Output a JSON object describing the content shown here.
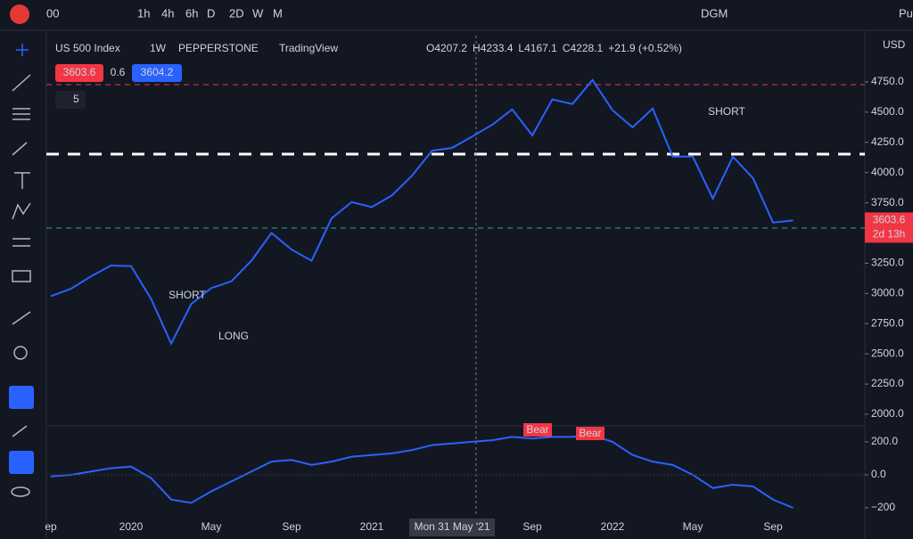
{
  "toolbar": {
    "items": [
      "00",
      "1h",
      "4h",
      "6h",
      "D",
      "2D",
      "W",
      "M",
      "DGM",
      "Pu"
    ],
    "active": "W"
  },
  "legend": {
    "symbol": "US 500 Index",
    "interval": "1W",
    "exchange": "PEPPERSTONE",
    "source": "TradingView",
    "ohlc": [
      "O4207.2",
      "H4233.4",
      "L4167.1",
      "C4228.1",
      "+21.9 (+0.52%)"
    ],
    "bid": "3603.6",
    "spread": "0.6",
    "ask": "3604.2",
    "indicators": "5"
  },
  "chart_data": [
    {
      "type": "line",
      "color": "#2962ff",
      "y_axis_unit": "USD",
      "categories": [
        "ep",
        null,
        null,
        null,
        "2020",
        null,
        null,
        null,
        "May",
        null,
        null,
        null,
        "Sep",
        null,
        null,
        null,
        "2021",
        null,
        null,
        null,
        "Mon 31 May '21",
        null,
        null,
        null,
        "Sep",
        null,
        null,
        null,
        "2022",
        null,
        null,
        null,
        "May",
        null,
        null,
        null,
        "Sep",
        null
      ],
      "values": [
        2977,
        3038,
        3141,
        3231,
        3226,
        2954,
        2585,
        2912,
        3044,
        3100,
        3271,
        3500,
        3363,
        3270,
        3622,
        3756,
        3714,
        3811,
        3973,
        4181,
        4204,
        4298,
        4395,
        4523,
        4308,
        4605,
        4567,
        4766,
        4516,
        4374,
        4530,
        4132,
        4132,
        3785,
        4130,
        3955,
        3586,
        3604
      ],
      "ylim": [
        1904,
        5133
      ],
      "yticks": [
        {
          "value": 2000,
          "label": "2000.0"
        },
        {
          "value": 2250,
          "label": "2250.0"
        },
        {
          "value": 2500,
          "label": "2500.0"
        },
        {
          "value": 2750,
          "label": "2750.0"
        },
        {
          "value": 3000,
          "label": "3000.0"
        },
        {
          "value": 3250,
          "label": "3250.0"
        },
        {
          "value": 3500,
          "label": "3500.0"
        },
        {
          "value": 3750,
          "label": "3750.0"
        },
        {
          "value": 4000,
          "label": "4000.0"
        },
        {
          "value": 4250,
          "label": "4250.0"
        },
        {
          "value": 4500,
          "label": "4500.0"
        },
        {
          "value": 4750,
          "label": "4750.0"
        }
      ],
      "last_price": {
        "value": 3603.6,
        "label": "3603.6"
      },
      "countdown": "2d 13h",
      "annotations": [
        "SHORT",
        "LONG",
        "SHORT"
      ]
    },
    {
      "type": "line",
      "color": "#2962ff",
      "values": [
        -10,
        0,
        20,
        40,
        50,
        -20,
        -150,
        -170,
        -100,
        -40,
        20,
        80,
        90,
        60,
        80,
        110,
        120,
        130,
        150,
        180,
        190,
        200,
        210,
        230,
        220,
        230,
        230,
        240,
        200,
        120,
        80,
        60,
        0,
        -80,
        -60,
        -70,
        -150,
        -200
      ],
      "ylim": [
        -362,
        286
      ],
      "yticks": [
        {
          "value": 200,
          "label": "200.0"
        },
        {
          "value": 0,
          "label": "0.0"
        },
        {
          "value": -200,
          "label": "−200"
        }
      ],
      "annotations": [
        "Bear",
        "Bear"
      ]
    }
  ]
}
